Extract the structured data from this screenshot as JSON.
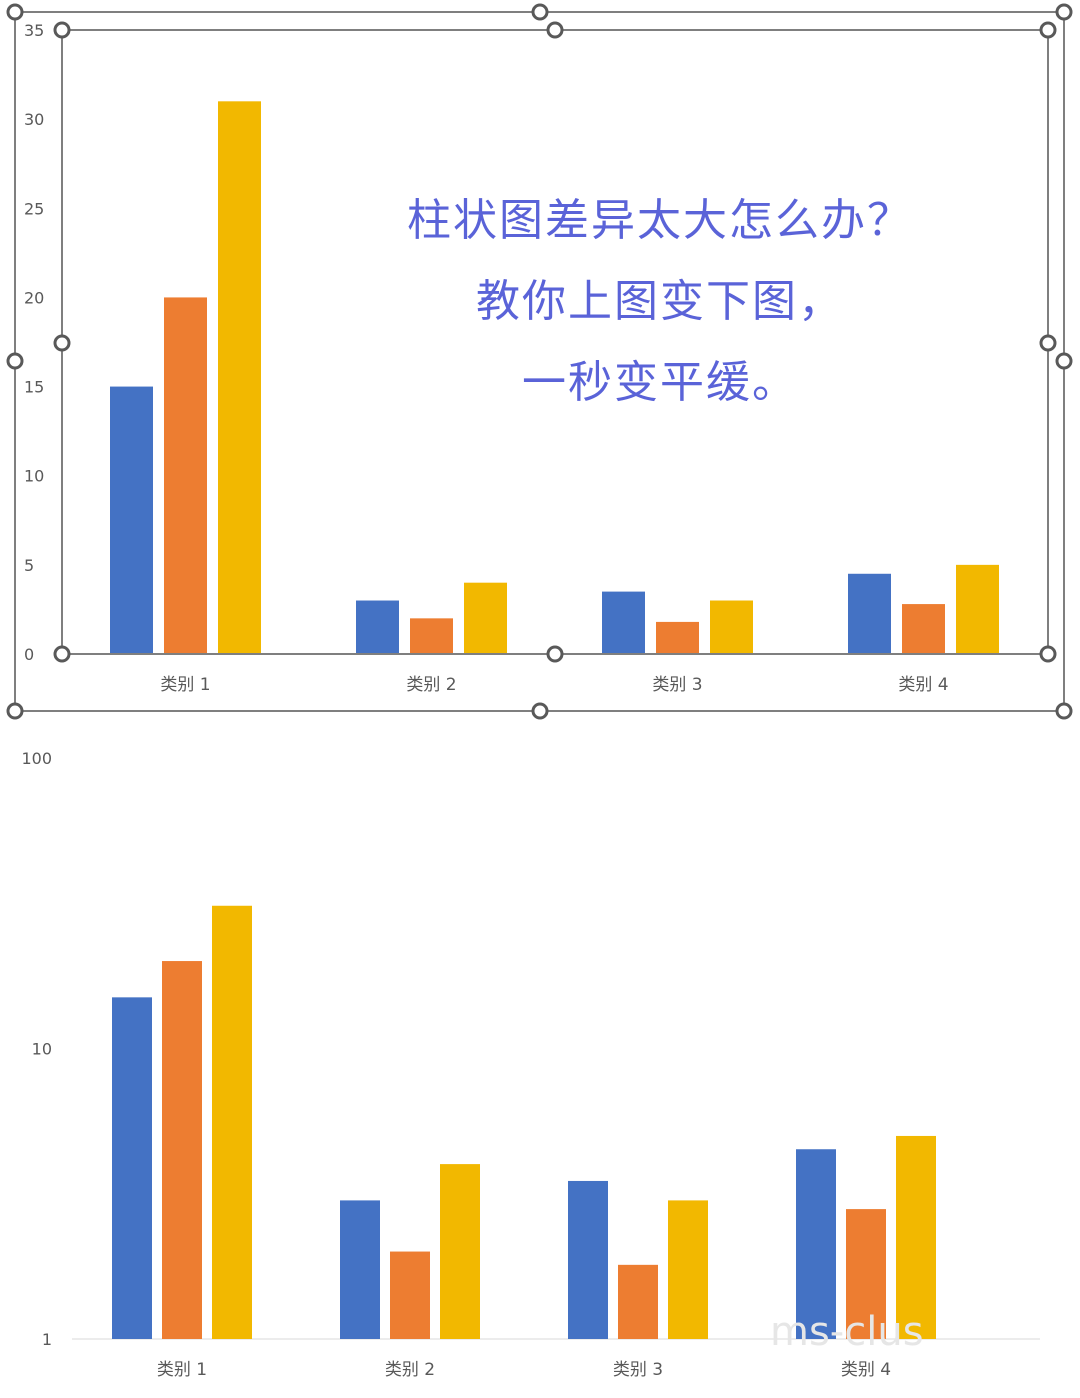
{
  "overlay": {
    "lines": [
      "柱状图差异太大怎么办？",
      "教你上图变下图，",
      "一秒变平缓。"
    ]
  },
  "watermark": "ms-clus",
  "colors": {
    "series1": "#4472c4",
    "series2": "#ed7d31",
    "series3": "#f2b800",
    "overlay": "#5a63d8"
  },
  "chart_data": [
    {
      "type": "bar",
      "categories": [
        "类别 1",
        "类别 2",
        "类别 3",
        "类别 4"
      ],
      "series": [
        {
          "values": [
            15,
            3,
            3.5,
            4.5
          ]
        },
        {
          "values": [
            20,
            2,
            1.8,
            2.8
          ]
        },
        {
          "values": [
            31,
            4,
            3,
            5
          ]
        }
      ],
      "ylim": [
        0,
        35
      ],
      "yticks": [
        "0",
        "5",
        "10",
        "15",
        "20",
        "25",
        "30",
        "35"
      ],
      "yscale": "linear",
      "grid": false
    },
    {
      "type": "bar",
      "categories": [
        "类别 1",
        "类别 2",
        "类别 3",
        "类别 4"
      ],
      "series": [
        {
          "values": [
            15,
            3,
            3.5,
            4.5
          ]
        },
        {
          "values": [
            20,
            2,
            1.8,
            2.8
          ]
        },
        {
          "values": [
            31,
            4,
            3,
            5
          ]
        }
      ],
      "ylim": [
        1,
        100
      ],
      "yticks": [
        "1",
        "10",
        "100"
      ],
      "yscale": "log",
      "grid": false
    }
  ]
}
